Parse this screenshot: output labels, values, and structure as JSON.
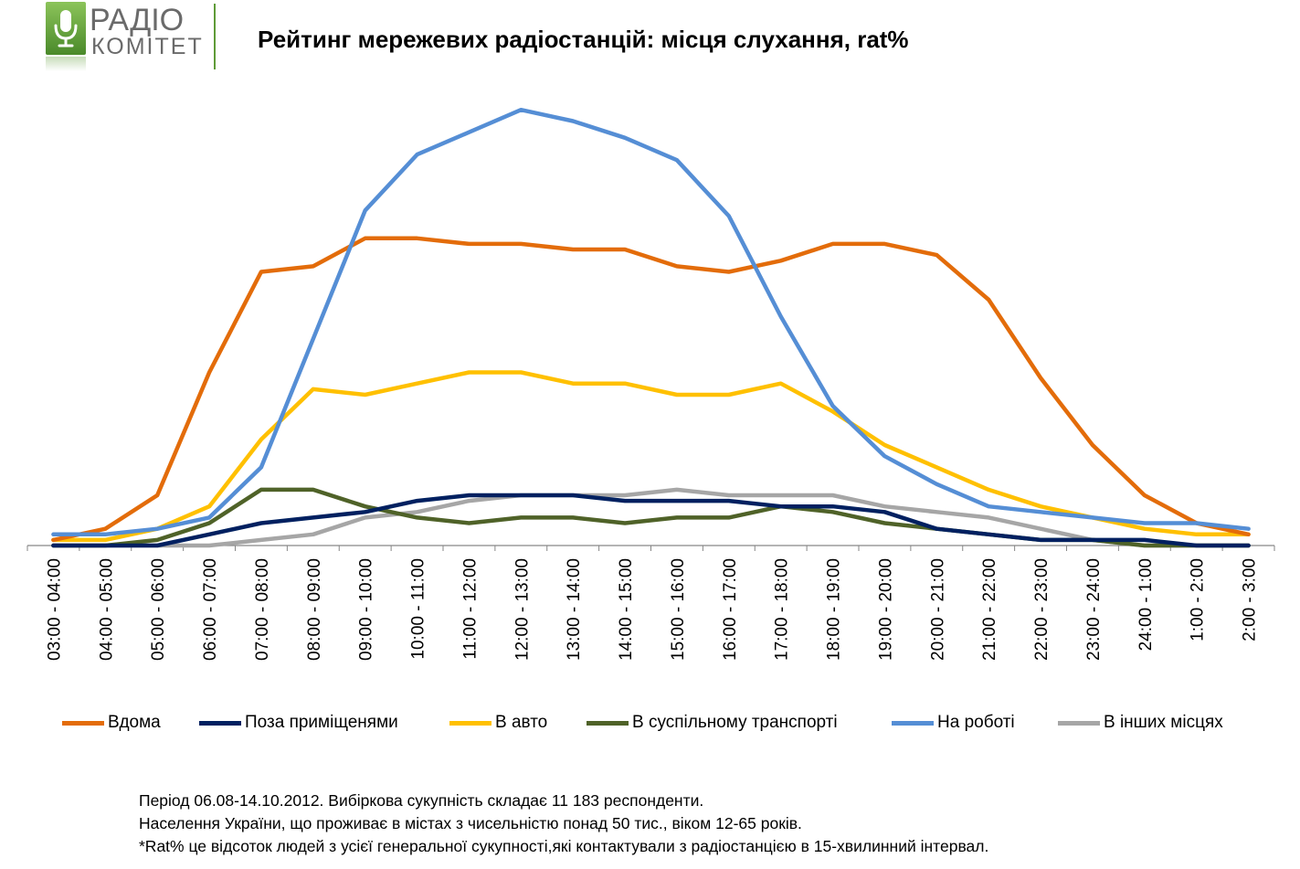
{
  "logo": {
    "line1": "РАДІО",
    "line2": "КОМІТЕТ",
    "colors": {
      "green": "#5f9b37",
      "text": "#6a6a6a"
    },
    "icon": "microphone-icon"
  },
  "chart_data": {
    "type": "line",
    "title": "Рейтинг мережевих радіостанцій: місця слухання, rat%",
    "xlabel": "",
    "ylabel": "",
    "ylim": [
      0,
      8
    ],
    "grid": false,
    "legend_position": "bottom",
    "categories": [
      "03:00 - 04:00",
      "04:00 - 05:00",
      "05:00 - 06:00",
      "06:00 - 07:00",
      "07:00 - 08:00",
      "08:00 - 09:00",
      "09:00 - 10:00",
      "10:00 - 11:00",
      "11:00 - 12:00",
      "12:00 - 13:00",
      "13:00 - 14:00",
      "14:00 - 15:00",
      "15:00 - 16:00",
      "16:00 - 17:00",
      "17:00 - 18:00",
      "18:00 - 19:00",
      "19:00 - 20:00",
      "20:00 - 21:00",
      "21:00 - 22:00",
      "22:00 - 23:00",
      "23:00 - 24:00",
      "24:00 - 1:00",
      "1:00 - 2:00",
      "2:00 - 3:00"
    ],
    "series": [
      {
        "name": "Вдома",
        "color": "#e36c0a",
        "values": [
          0.1,
          0.3,
          0.9,
          3.1,
          4.9,
          5.0,
          5.5,
          5.5,
          5.4,
          5.4,
          5.3,
          5.3,
          5.0,
          4.9,
          5.1,
          5.4,
          5.4,
          5.2,
          4.4,
          3.0,
          1.8,
          0.9,
          0.4,
          0.2
        ]
      },
      {
        "name": "Поза приміщенями",
        "color": "#002060",
        "values": [
          0.0,
          0.0,
          0.0,
          0.2,
          0.4,
          0.5,
          0.6,
          0.8,
          0.9,
          0.9,
          0.9,
          0.8,
          0.8,
          0.8,
          0.7,
          0.7,
          0.6,
          0.3,
          0.2,
          0.1,
          0.1,
          0.1,
          0.0,
          0.0
        ]
      },
      {
        "name": "В авто",
        "color": "#ffc000",
        "values": [
          0.1,
          0.1,
          0.3,
          0.7,
          1.9,
          2.8,
          2.7,
          2.9,
          3.1,
          3.1,
          2.9,
          2.9,
          2.7,
          2.7,
          2.9,
          2.4,
          1.8,
          1.4,
          1.0,
          0.7,
          0.5,
          0.3,
          0.2,
          0.2
        ]
      },
      {
        "name": "В суспільному транспорті",
        "color": "#4f6228",
        "values": [
          0.0,
          0.0,
          0.1,
          0.4,
          1.0,
          1.0,
          0.7,
          0.5,
          0.4,
          0.5,
          0.5,
          0.4,
          0.5,
          0.5,
          0.7,
          0.6,
          0.4,
          0.3,
          0.2,
          0.1,
          0.1,
          0.0,
          0.0,
          0.0
        ]
      },
      {
        "name": "На роботі",
        "color": "#558ed5",
        "values": [
          0.2,
          0.2,
          0.3,
          0.5,
          1.4,
          3.7,
          6.0,
          7.0,
          7.4,
          7.8,
          7.6,
          7.3,
          6.9,
          5.9,
          4.1,
          2.5,
          1.6,
          1.1,
          0.7,
          0.6,
          0.5,
          0.4,
          0.4,
          0.3
        ]
      },
      {
        "name": "В інших місцях",
        "color": "#a6a6a6",
        "values": [
          0.0,
          0.0,
          0.0,
          0.0,
          0.1,
          0.2,
          0.5,
          0.6,
          0.8,
          0.9,
          0.9,
          0.9,
          1.0,
          0.9,
          0.9,
          0.9,
          0.7,
          0.6,
          0.5,
          0.3,
          0.1,
          0.0,
          0.0,
          0.0
        ]
      }
    ]
  },
  "notes": [
    "Період 06.08-14.10.2012. Вибіркова сукупність складає 11 183 респонденти.",
    "Населення України, що проживає в містах з чисельністю понад 50 тис., віком 12-65 років.",
    "*Rat% це відсоток людей з усієї генеральної сукупності,які контактували з радіостанцією в 15-хвилинний інтервал."
  ]
}
